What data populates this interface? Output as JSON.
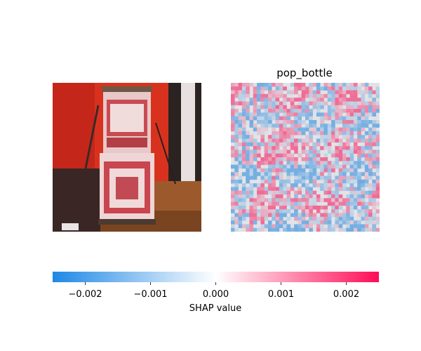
{
  "chart_data": {
    "type": "heatmap",
    "panels": [
      {
        "title": "",
        "content": "input image: red and white patterned cylindrical drum on a stand in front of a red backdrop"
      },
      {
        "title": "pop_bottle",
        "content": "SHAP value attribution map overlaid on grayscale input"
      }
    ],
    "colorbar": {
      "label": "SHAP value",
      "min": -0.0025,
      "max": 0.0025,
      "ticks": [
        -0.002,
        -0.001,
        0.0,
        0.001,
        0.002
      ],
      "tick_labels": [
        "−0.002",
        "−0.001",
        "0.000",
        "0.001",
        "0.002"
      ],
      "low_color": "#1e88e5",
      "mid_color": "#ffffff",
      "high_color": "#ff0d57"
    }
  }
}
